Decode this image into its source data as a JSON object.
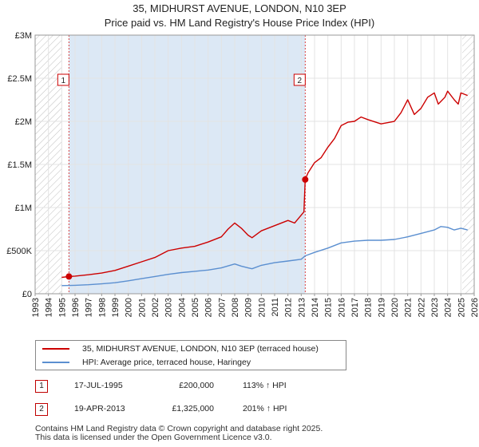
{
  "header": {
    "title": "35, MIDHURST AVENUE, LONDON, N10 3EP",
    "subtitle": "Price paid vs. HM Land Registry's House Price Index (HPI)"
  },
  "colors": {
    "property": "#cc0000",
    "hpi": "#5b8fd0",
    "hatch": "#bfbfbf",
    "shade": "#dce8f5",
    "marker_line": "#d94040"
  },
  "legend": {
    "property_label": "35, MIDHURST AVENUE, LONDON, N10 3EP (terraced house)",
    "hpi_label": "HPI: Average price, terraced house, Haringey"
  },
  "transactions": [
    {
      "id": "1",
      "date": "17-JUL-1995",
      "price": "£200,000",
      "hpi": "113% ↑ HPI"
    },
    {
      "id": "2",
      "date": "19-APR-2013",
      "price": "£1,325,000",
      "hpi": "201% ↑ HPI"
    }
  ],
  "footer": {
    "line1": "Contains HM Land Registry data © Crown copyright and database right 2025.",
    "line2": "This data is licensed under the Open Government Licence v3.0."
  },
  "chart_data": {
    "type": "line",
    "title": "35, MIDHURST AVENUE, LONDON, N10 3EP",
    "subtitle": "Price paid vs. HM Land Registry's House Price Index (HPI)",
    "xlabel": "",
    "ylabel": "",
    "xlim": [
      1993,
      2026
    ],
    "ylim": [
      0,
      3000000
    ],
    "x_ticks": [
      "1993",
      "1994",
      "1995",
      "1996",
      "1997",
      "1998",
      "1999",
      "2000",
      "2001",
      "2002",
      "2003",
      "2004",
      "2005",
      "2006",
      "2007",
      "2008",
      "2009",
      "2010",
      "2011",
      "2012",
      "2013",
      "2014",
      "2015",
      "2016",
      "2017",
      "2018",
      "2019",
      "2020",
      "2021",
      "2022",
      "2023",
      "2024",
      "2025",
      "2026"
    ],
    "y_ticks": [
      {
        "value": 0,
        "label": "£0"
      },
      {
        "value": 500000,
        "label": "£500K"
      },
      {
        "value": 1000000,
        "label": "£1M"
      },
      {
        "value": 1500000,
        "label": "£1.5M"
      },
      {
        "value": 2000000,
        "label": "£2M"
      },
      {
        "value": 2500000,
        "label": "£2.5M"
      },
      {
        "value": 3000000,
        "label": "£3M"
      }
    ],
    "hatched_ranges": [
      [
        1993,
        1995.0
      ],
      [
        2025.1,
        2026
      ]
    ],
    "shaded_range": [
      1995.54,
      2013.3
    ],
    "markers": [
      {
        "label": "1",
        "x": 1995.54,
        "y": 200000
      },
      {
        "label": "2",
        "x": 2013.3,
        "y": 1325000
      }
    ],
    "series": [
      {
        "name": "35, MIDHURST AVENUE, LONDON, N10 3EP (terraced house)",
        "x": [
          1995.0,
          1995.54,
          1996,
          1997,
          1998,
          1999,
          2000,
          2001,
          2002,
          2003,
          2004,
          2005,
          2006,
          2007,
          2007.5,
          2008,
          2008.5,
          2009,
          2009.3,
          2010,
          2011,
          2012,
          2012.5,
          2013.2,
          2013.3,
          2013.5,
          2014,
          2014.5,
          2015,
          2015.5,
          2016,
          2016.5,
          2017,
          2017.5,
          2018,
          2019,
          2020,
          2020.5,
          2021,
          2021.5,
          2022,
          2022.5,
          2023,
          2023.3,
          2023.8,
          2024,
          2024.5,
          2024.8,
          2025.0,
          2025.5
        ],
        "values": [
          190000,
          200000,
          205000,
          220000,
          240000,
          270000,
          320000,
          370000,
          420000,
          500000,
          530000,
          550000,
          600000,
          660000,
          750000,
          820000,
          760000,
          680000,
          650000,
          730000,
          790000,
          850000,
          820000,
          950000,
          1325000,
          1400000,
          1520000,
          1580000,
          1700000,
          1800000,
          1950000,
          1990000,
          2000000,
          2050000,
          2020000,
          1970000,
          2000000,
          2100000,
          2250000,
          2080000,
          2150000,
          2280000,
          2330000,
          2200000,
          2280000,
          2350000,
          2250000,
          2200000,
          2330000,
          2300000
        ]
      },
      {
        "name": "HPI: Average price, terraced house, Haringey",
        "x": [
          1995.0,
          1996,
          1997,
          1998,
          1999,
          2000,
          2001,
          2002,
          2003,
          2004,
          2005,
          2006,
          2007,
          2008,
          2008.5,
          2009,
          2009.3,
          2010,
          2011,
          2012,
          2013,
          2013.3,
          2014,
          2015,
          2016,
          2017,
          2018,
          2019,
          2020,
          2021,
          2022,
          2023,
          2023.5,
          2024,
          2024.5,
          2025.0,
          2025.5
        ],
        "values": [
          94000,
          98000,
          105000,
          115000,
          128000,
          150000,
          175000,
          200000,
          225000,
          245000,
          260000,
          275000,
          300000,
          345000,
          320000,
          300000,
          290000,
          330000,
          360000,
          380000,
          400000,
          440000,
          480000,
          530000,
          590000,
          610000,
          620000,
          620000,
          630000,
          660000,
          700000,
          740000,
          780000,
          770000,
          740000,
          760000,
          740000
        ]
      }
    ]
  }
}
